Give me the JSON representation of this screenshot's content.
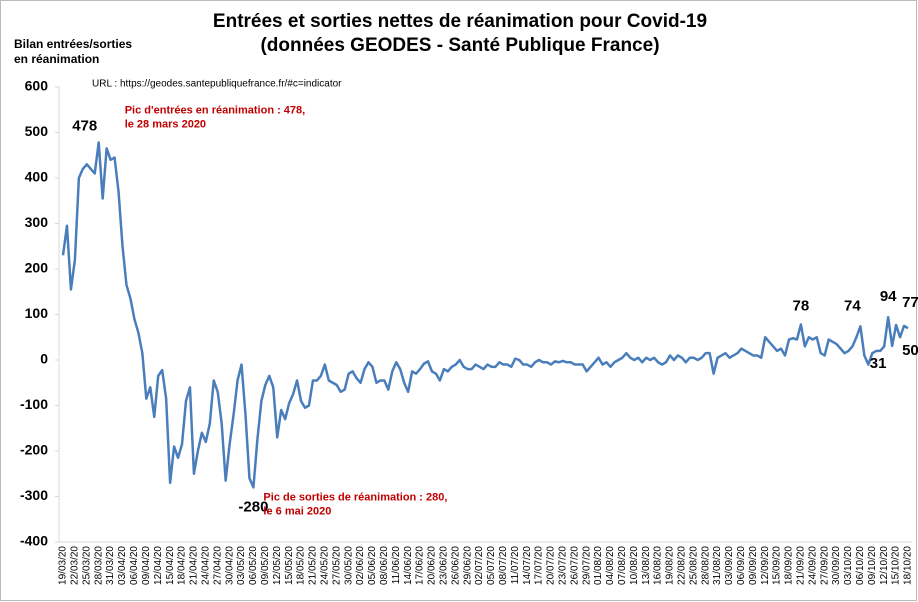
{
  "chart_data": {
    "type": "line",
    "title": [
      "Entrées et sorties nettes de réanimation pour Covid-19",
      "(données GEODES - Santé Publique France)"
    ],
    "y_label": [
      "Bilan entrées/sorties",
      "en réanimation"
    ],
    "source": "URL : https://geodes.santepubliquefrance.fr/#c=indicator",
    "annotations": [
      {
        "index": 9,
        "lines": [
          "Pic d'entrées  en réanimation : 478,",
          "le 28 mars 2020"
        ]
      },
      {
        "index": 48,
        "lines": [
          "Pic de sorties de réanimation : 280,",
          "le 6 mai 2020"
        ]
      }
    ],
    "labeled_points": [
      9,
      48,
      186,
      201,
      208,
      209,
      210,
      211
    ],
    "color": "#4a7ebb",
    "ylim": [
      -400,
      600
    ],
    "yticks": [
      -400,
      -300,
      -200,
      -100,
      0,
      100,
      200,
      300,
      400,
      500,
      600
    ],
    "categories": [
      "19/03/20",
      null,
      null,
      "22/03/20",
      null,
      null,
      "25/03/20",
      null,
      null,
      "28/03/20",
      null,
      null,
      "31/03/20",
      null,
      null,
      "03/04/20",
      null,
      null,
      "06/04/20",
      null,
      null,
      "09/04/20",
      null,
      null,
      "12/04/20",
      null,
      null,
      "15/04/20",
      null,
      null,
      "18/04/20",
      null,
      null,
      "21/04/20",
      null,
      null,
      "24/04/20",
      null,
      null,
      "27/04/20",
      null,
      null,
      "30/04/20",
      null,
      null,
      "03/05/20",
      null,
      null,
      "06/05/20",
      null,
      null,
      "09/05/20",
      null,
      null,
      "12/05/20",
      null,
      null,
      "15/05/20",
      null,
      null,
      "18/05/20",
      null,
      null,
      "21/05/20",
      null,
      null,
      "24/05/20",
      null,
      null,
      "27/05/20",
      null,
      null,
      "30/05/20",
      null,
      null,
      "02/06/20",
      null,
      null,
      "05/06/20",
      null,
      null,
      "08/06/20",
      null,
      null,
      "11/06/20",
      null,
      null,
      "14/06/20",
      null,
      null,
      "17/06/20",
      null,
      null,
      "20/06/20",
      null,
      null,
      "23/06/20",
      null,
      null,
      "26/06/20",
      null,
      null,
      "29/06/20",
      null,
      null,
      "02/07/20",
      null,
      null,
      "05/07/20",
      null,
      null,
      "08/07/20",
      null,
      null,
      "11/07/20",
      null,
      null,
      "14/07/20",
      null,
      null,
      "17/07/20",
      null,
      null,
      "20/07/20",
      null,
      null,
      "23/07/20",
      null,
      null,
      "26/07/20",
      null,
      null,
      "29/07/20",
      null,
      null,
      "01/08/20",
      null,
      null,
      "04/08/20",
      null,
      null,
      "07/08/20",
      null,
      null,
      "10/08/20",
      null,
      null,
      "13/08/20",
      null,
      null,
      "16/08/20",
      null,
      null,
      "19/08/20",
      null,
      null,
      "22/08/20",
      null,
      null,
      "25/08/20",
      null,
      null,
      "28/08/20",
      null,
      null,
      "31/08/20",
      null,
      null,
      "03/09/20",
      null,
      null,
      "06/09/20",
      null,
      null,
      "09/09/20",
      null,
      null,
      "12/09/20",
      null,
      null,
      "15/09/20",
      null,
      null,
      "18/09/20",
      null,
      null,
      "21/09/20",
      null,
      null,
      "24/09/20",
      null,
      null,
      "27/09/20",
      null,
      null,
      "30/09/20",
      null,
      null,
      "03/10/20",
      null,
      null,
      "06/10/20",
      null,
      null,
      "09/10/20",
      null,
      null,
      "12/10/20",
      null,
      null,
      "15/10/20",
      null,
      null,
      "18/10/20"
    ],
    "values": [
      230,
      295,
      155,
      220,
      400,
      420,
      430,
      420,
      410,
      478,
      355,
      465,
      440,
      445,
      370,
      250,
      165,
      135,
      90,
      60,
      15,
      -85,
      -60,
      -125,
      -35,
      -22,
      -85,
      -270,
      -190,
      -215,
      -185,
      -90,
      -60,
      -250,
      -200,
      -160,
      -180,
      -140,
      -45,
      -70,
      -140,
      -265,
      -185,
      -120,
      -45,
      -10,
      -120,
      -260,
      -280,
      -175,
      -90,
      -55,
      -35,
      -60,
      -170,
      -110,
      -130,
      -95,
      -75,
      -45,
      -90,
      -105,
      -100,
      -45,
      -45,
      -35,
      -10,
      -45,
      -50,
      -55,
      -70,
      -65,
      -30,
      -25,
      -40,
      -50,
      -20,
      -5,
      -15,
      -50,
      -45,
      -45,
      -65,
      -25,
      -5,
      -20,
      -50,
      -70,
      -25,
      -30,
      -20,
      -8,
      -3,
      -25,
      -30,
      -45,
      -20,
      -25,
      -15,
      -10,
      0,
      -15,
      -20,
      -20,
      -10,
      -15,
      -20,
      -10,
      -15,
      -15,
      -5,
      -10,
      -10,
      -15,
      3,
      0,
      -10,
      -10,
      -15,
      -5,
      0,
      -5,
      -5,
      -10,
      -3,
      -5,
      -2,
      -5,
      -5,
      -10,
      -10,
      -10,
      -25,
      -15,
      -5,
      5,
      -10,
      -5,
      -15,
      -5,
      0,
      5,
      15,
      5,
      0,
      5,
      -5,
      5,
      0,
      5,
      -5,
      -10,
      -5,
      10,
      0,
      10,
      5,
      -5,
      5,
      5,
      0,
      5,
      15,
      15,
      -30,
      5,
      10,
      15,
      5,
      10,
      15,
      25,
      20,
      15,
      10,
      10,
      5,
      50,
      40,
      30,
      20,
      25,
      10,
      45,
      48,
      45,
      78,
      30,
      50,
      45,
      50,
      15,
      10,
      45,
      40,
      35,
      25,
      15,
      20,
      30,
      50,
      74,
      10,
      -10,
      15,
      20,
      20,
      30,
      94,
      31,
      77,
      50,
      75,
      70
    ]
  }
}
